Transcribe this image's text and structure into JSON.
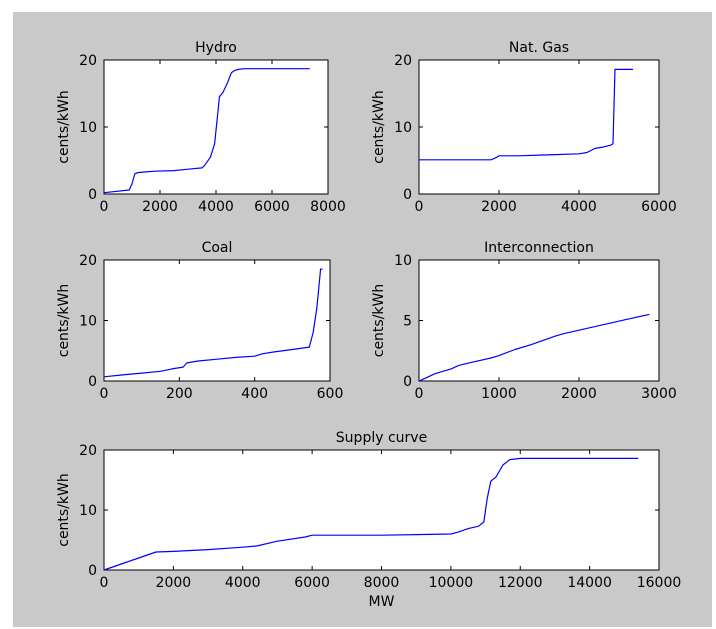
{
  "figure": {
    "background": "#c9c9c9",
    "axes_background": "#ffffff",
    "line_color": "#0000ff"
  },
  "chart_data": [
    {
      "type": "line",
      "title": "Hydro",
      "xlabel": "",
      "ylabel": "cents/kWh",
      "xlim": [
        0,
        8000
      ],
      "ylim": [
        0,
        20
      ],
      "xticks": [
        0,
        2000,
        4000,
        6000,
        8000
      ],
      "yticks": [
        0,
        10,
        20
      ],
      "x": [
        0,
        900,
        1000,
        1100,
        1200,
        1500,
        1800,
        2500,
        3000,
        3500,
        3600,
        3800,
        3950,
        4050,
        4120,
        4250,
        4400,
        4550,
        4650,
        4800,
        5000,
        6000,
        7000,
        7350
      ],
      "y": [
        0.2,
        0.6,
        1.5,
        3.0,
        3.2,
        3.3,
        3.4,
        3.5,
        3.7,
        3.9,
        4.3,
        5.5,
        7.5,
        11.5,
        14.5,
        15.2,
        16.5,
        18.1,
        18.4,
        18.6,
        18.7,
        18.7,
        18.7,
        18.7
      ]
    },
    {
      "type": "line",
      "title": "Nat. Gas",
      "xlabel": "",
      "ylabel": "cents/kWh",
      "xlim": [
        0,
        6000
      ],
      "ylim": [
        0,
        20
      ],
      "xticks": [
        0,
        2000,
        4000,
        6000
      ],
      "yticks": [
        0,
        10,
        20
      ],
      "x": [
        0,
        1800,
        1950,
        2000,
        2500,
        3000,
        3500,
        4000,
        4200,
        4400,
        4600,
        4800,
        4850,
        4870,
        4900,
        5000,
        5200,
        5350
      ],
      "y": [
        5.1,
        5.1,
        5.5,
        5.7,
        5.7,
        5.8,
        5.9,
        6.0,
        6.2,
        6.8,
        7.0,
        7.3,
        7.5,
        12.0,
        18.6,
        18.6,
        18.6,
        18.6
      ]
    },
    {
      "type": "line",
      "title": "Coal",
      "xlabel": "",
      "ylabel": "cents/kWh",
      "xlim": [
        0,
        600
      ],
      "ylim": [
        0,
        20
      ],
      "xticks": [
        0,
        200,
        400,
        600
      ],
      "yticks": [
        0,
        10,
        20
      ],
      "x": [
        0,
        50,
        100,
        150,
        180,
        210,
        220,
        250,
        300,
        350,
        400,
        420,
        450,
        500,
        545,
        555,
        565,
        575,
        580
      ],
      "y": [
        0.7,
        1.0,
        1.3,
        1.6,
        2.0,
        2.3,
        3.0,
        3.3,
        3.6,
        3.9,
        4.1,
        4.5,
        4.8,
        5.2,
        5.6,
        8.0,
        12.0,
        18.5,
        18.5
      ]
    },
    {
      "type": "line",
      "title": "Interconnection",
      "xlabel": "",
      "ylabel": "cents/kWh",
      "xlim": [
        0,
        3000
      ],
      "ylim": [
        0,
        10
      ],
      "xticks": [
        0,
        1000,
        2000,
        3000
      ],
      "yticks": [
        0,
        5,
        10
      ],
      "x": [
        0,
        100,
        200,
        400,
        500,
        700,
        900,
        1000,
        1200,
        1400,
        1700,
        1800,
        2000,
        2200,
        2400,
        2600,
        2880
      ],
      "y": [
        0.0,
        0.3,
        0.6,
        1.0,
        1.3,
        1.6,
        1.9,
        2.1,
        2.6,
        3.0,
        3.7,
        3.9,
        4.2,
        4.5,
        4.8,
        5.1,
        5.5
      ]
    },
    {
      "type": "line",
      "title": "Supply curve",
      "xlabel": "MW",
      "ylabel": "cents/kWh",
      "xlim": [
        0,
        16000
      ],
      "ylim": [
        0,
        20
      ],
      "xticks": [
        0,
        2000,
        4000,
        6000,
        8000,
        10000,
        12000,
        14000,
        16000
      ],
      "yticks": [
        0,
        10,
        20
      ],
      "x": [
        0,
        500,
        1000,
        1500,
        2000,
        3000,
        4000,
        4400,
        5000,
        5800,
        6000,
        8000,
        9000,
        10000,
        10200,
        10500,
        10800,
        10950,
        11050,
        11150,
        11300,
        11500,
        11700,
        12000,
        14000,
        15400
      ],
      "y": [
        0.0,
        1.0,
        2.0,
        3.0,
        3.1,
        3.4,
        3.8,
        4.0,
        4.8,
        5.5,
        5.8,
        5.8,
        5.9,
        6.0,
        6.3,
        6.9,
        7.3,
        8.0,
        12.0,
        14.8,
        15.5,
        17.5,
        18.4,
        18.6,
        18.6,
        18.6
      ]
    }
  ]
}
